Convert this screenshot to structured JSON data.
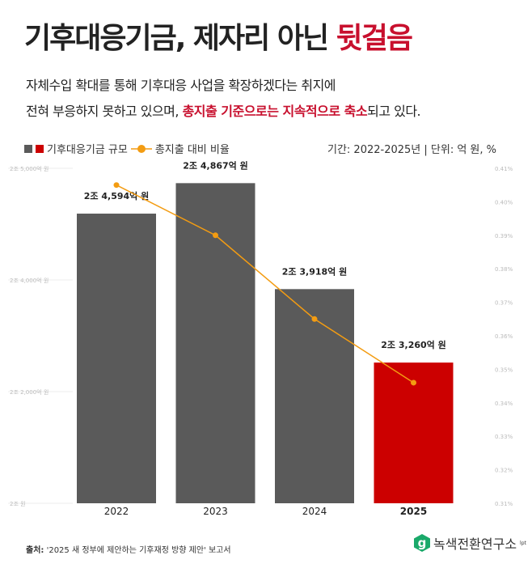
{
  "title": {
    "main": "기후대응기금, 제자리 아닌 ",
    "highlight": "뒷걸음"
  },
  "subtitle": {
    "line1": "자체수입 확대를 통해 기후대응 사업을 확장하겠다는 취지에",
    "line2_pre": "전혀 부응하지 못하고 있으며, ",
    "line2_hl": "총지출 기준으로는 지속적으로 축소",
    "line2_post": "되고 있다."
  },
  "legend": {
    "bar_label": "기후대응기금 규모",
    "line_label": "총지출 대비 비율",
    "period": "기간: 2022-2025년 | 단위: 억 원, %"
  },
  "colors": {
    "bar": "#5a5a5a",
    "bar_highlight": "#cc0000",
    "line": "#f39c12",
    "accent": "#c8102e"
  },
  "chart_data": {
    "type": "bar+line",
    "categories": [
      "2022",
      "2023",
      "2024",
      "2025"
    ],
    "series": [
      {
        "name": "기후대응기금 규모",
        "type": "bar",
        "values": [
          24594,
          24867,
          23918,
          23260
        ],
        "labels": [
          "2조 4,594억 원",
          "2조 4,867억 원",
          "2조 3,918억 원",
          "2조 3,260억 원"
        ]
      },
      {
        "name": "총지출 대비 비율",
        "type": "line",
        "values": [
          0.405,
          0.39,
          0.365,
          0.346
        ]
      }
    ],
    "y_left": {
      "ticks": [
        "2조 5,000억 원",
        "2조 4,000억 원",
        "2조 2,000억 원",
        "2조 원"
      ],
      "ylim": [
        22000,
        25000
      ]
    },
    "y_right": {
      "ticks": [
        "0.41%",
        "0.40%",
        "0.39%",
        "0.38%",
        "0.37%",
        "0.36%",
        "0.35%",
        "0.34%",
        "0.33%",
        "0.32%",
        "0.31%"
      ],
      "ylim": [
        0.31,
        0.41
      ]
    },
    "highlight_category": "2025"
  },
  "footer": {
    "source_label": "출처:",
    "source_text": " '2025 새 정부에 제안하는 기후재정 방향 제안' 보고서"
  },
  "logo": {
    "mark": "g",
    "name": "녹색전환연구소",
    "sup": "lpt"
  }
}
